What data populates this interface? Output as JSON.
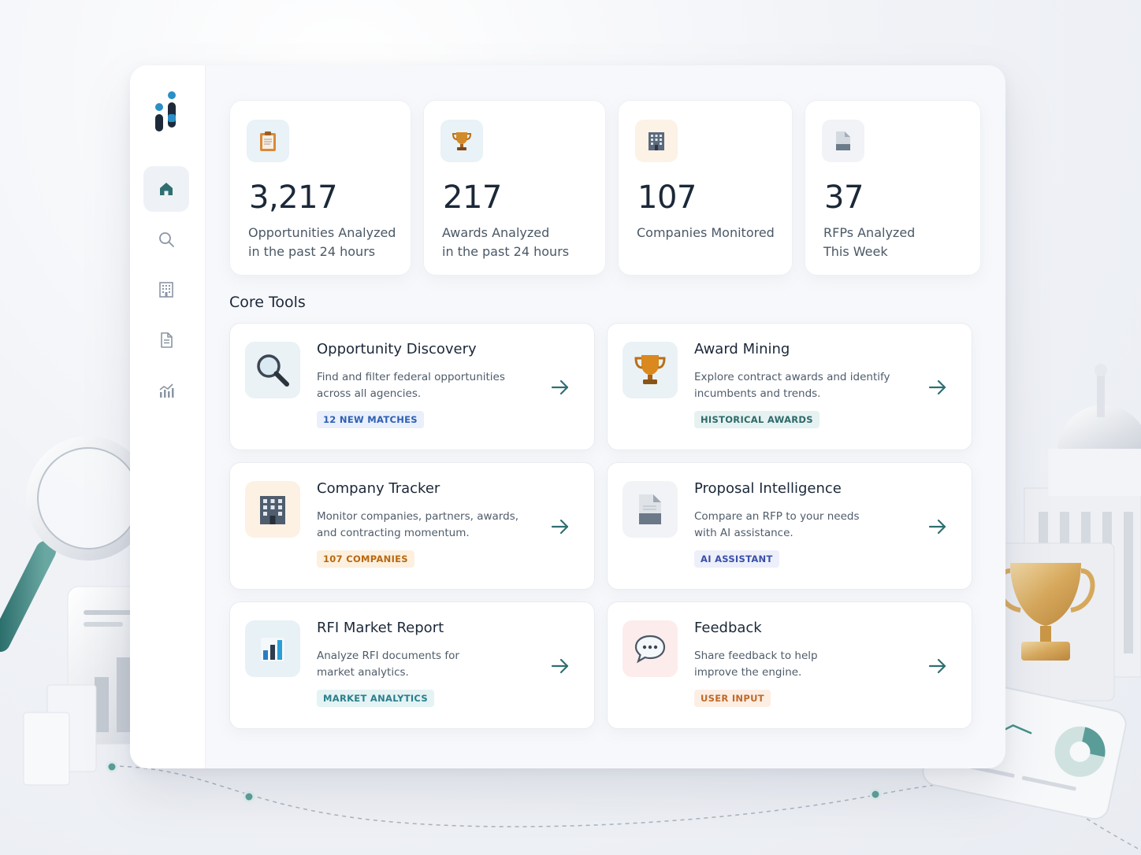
{
  "stats": [
    {
      "value": "3,217",
      "line1": "Opportunities Analyzed",
      "line2": "in the past 24 hours",
      "icon": "clipboard-icon"
    },
    {
      "value": "217",
      "line1": "Awards Analyzed",
      "line2": "in the past 24 hours",
      "icon": "trophy-icon"
    },
    {
      "value": "107",
      "line1": "Companies Monitored",
      "line2": "",
      "icon": "building-icon"
    },
    {
      "value": "37",
      "line1": "RFPs Analyzed",
      "line2": "This Week",
      "icon": "document-icon"
    }
  ],
  "section_title": "Core Tools",
  "tools": [
    {
      "title": "Opportunity Discovery",
      "desc1": "Find and filter federal opportunities",
      "desc2": "across all agencies.",
      "badge": "12 NEW MATCHES",
      "badge_color": "#2f5fb3",
      "badge_bg": "#e9f0fb",
      "icon": "magnifier-icon"
    },
    {
      "title": "Award Mining",
      "desc1": "Explore contract awards and identify",
      "desc2": "incumbents and trends.",
      "badge": "HISTORICAL AWARDS",
      "badge_color": "#2e6a6a",
      "badge_bg": "#e6f2f1",
      "icon": "trophy-icon"
    },
    {
      "title": "Company Tracker",
      "desc1": "Monitor companies, partners, awards,",
      "desc2": "and contracting momentum.",
      "badge": "107 COMPANIES",
      "badge_color": "#b8680f",
      "badge_bg": "#fdf0df",
      "icon": "building-icon"
    },
    {
      "title": "Proposal Intelligence",
      "desc1": "Compare an RFP to your needs",
      "desc2": "with AI assistance.",
      "badge": "AI ASSISTANT",
      "badge_color": "#3a4fa8",
      "badge_bg": "#edf0fb",
      "icon": "document-icon"
    },
    {
      "title": "RFI Market Report",
      "desc1": "Analyze RFI documents for",
      "desc2": "market analytics.",
      "badge": "MARKET ANALYTICS",
      "badge_color": "#2a7f8c",
      "badge_bg": "#e5f3f5",
      "icon": "bar-chart-icon"
    },
    {
      "title": "Feedback",
      "desc1": "Share feedback to help",
      "desc2": "improve the engine.",
      "badge": "USER INPUT",
      "badge_color": "#c0692a",
      "badge_bg": "#fdeee4",
      "icon": "chat-bubble-icon"
    }
  ],
  "nav": [
    "home-icon",
    "search-icon",
    "building-icon",
    "document-icon",
    "analytics-icon"
  ],
  "colors": {
    "accent": "#2f6f72",
    "brand_dark": "#1e2a3a",
    "brand_blue": "#2a8fc7"
  }
}
